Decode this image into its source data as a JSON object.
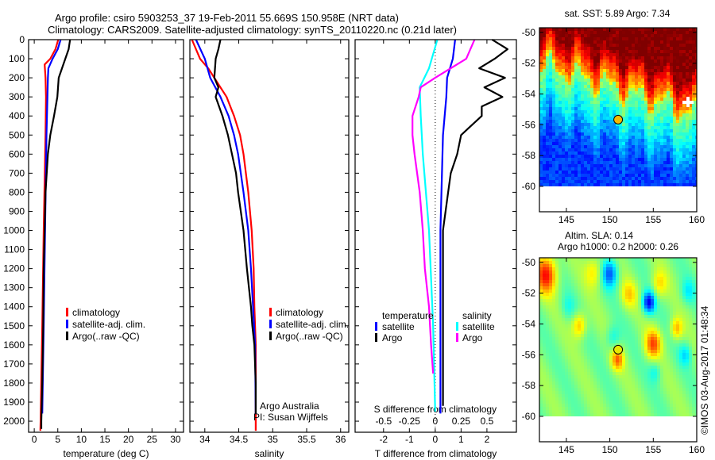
{
  "title": {
    "line1": "Argo profile: csiro 5903253_37 19-Feb-2011 55.669S 150.958E (NRT data)",
    "line2": "Climatology: CARS2009. Satellite-adjusted climatology: synTS_20110220.nc (0.21d later)"
  },
  "colors": {
    "climatology": "#ff0000",
    "satellite": "#0000ff",
    "argo": "#000000",
    "sal_satellite": "#00ffff",
    "sal_argo": "#ff00ff"
  },
  "credits": {
    "line1": "Argo Australia",
    "line2": "PI: Susan Wijffels"
  },
  "timestamp": "©IMOS 03-Aug-2017 01:48:34",
  "chart_data": [
    {
      "type": "line",
      "id": "temperature",
      "xlabel": "temperature (deg C)",
      "ylabel": "",
      "xlim": [
        -1.2,
        31.7
      ],
      "ylim": [
        2058,
        0
      ],
      "xticks": [
        0,
        5,
        10,
        15,
        20,
        25,
        30
      ],
      "yticks": [
        0,
        100,
        200,
        300,
        400,
        500,
        600,
        700,
        800,
        900,
        1000,
        1100,
        1200,
        1300,
        1400,
        1500,
        1600,
        1700,
        1800,
        1900,
        2000
      ],
      "legend": [
        "climatology",
        "satellite-adj. clim.",
        "Argo(..raw -QC)"
      ],
      "series": [
        {
          "name": "climatology",
          "color": "#ff0000",
          "depth": [
            0,
            50,
            100,
            130,
            200,
            300,
            500,
            1000,
            1500,
            2000,
            2050
          ],
          "values": [
            5.1,
            4.5,
            3.4,
            2.2,
            2.4,
            2.5,
            2.4,
            2.0,
            1.7,
            1.35,
            1.3
          ]
        },
        {
          "name": "satellite-adj. clim.",
          "color": "#0000ff",
          "depth": [
            0,
            50,
            100,
            150,
            200,
            300,
            500,
            1000,
            1500,
            1960
          ],
          "values": [
            5.6,
            5.0,
            3.9,
            3.0,
            2.9,
            2.8,
            2.6,
            2.3,
            2.0,
            1.7
          ]
        },
        {
          "name": "Argo(..raw -QC)",
          "color": "#000000",
          "depth": [
            0,
            50,
            100,
            200,
            300,
            400,
            500,
            600,
            800,
            1000,
            1200,
            1500,
            1800,
            2000,
            2040
          ],
          "values": [
            7.6,
            7.3,
            6.6,
            5.2,
            4.9,
            4.2,
            3.4,
            2.9,
            2.4,
            2.2,
            2.0,
            1.9,
            1.7,
            1.5,
            1.5
          ]
        }
      ]
    },
    {
      "type": "line",
      "id": "salinity",
      "xlabel": "salinity",
      "xlim": [
        33.78,
        36.12
      ],
      "ylim": [
        2058,
        0
      ],
      "xticks": [
        34,
        34.5,
        35,
        35.5,
        36
      ],
      "legend": [
        "climatology",
        "satellite-adj. clim.",
        "Argo(..raw -QC)"
      ],
      "series": [
        {
          "name": "climatology",
          "color": "#ff0000",
          "depth": [
            0,
            100,
            150,
            200,
            300,
            400,
            500,
            600,
            800,
            1000,
            1200,
            1400,
            1600,
            2000,
            2050
          ],
          "values": [
            33.81,
            33.93,
            34.05,
            34.14,
            34.32,
            34.43,
            34.52,
            34.57,
            34.64,
            34.69,
            34.72,
            34.73,
            34.75,
            34.75,
            34.75
          ]
        },
        {
          "name": "satellite-adj. clim.",
          "color": "#0000ff",
          "depth": [
            0,
            100,
            200,
            300,
            400,
            500,
            600,
            800,
            1000,
            1200,
            1400,
            1600,
            1960
          ],
          "values": [
            33.87,
            34.0,
            34.08,
            34.23,
            34.35,
            34.43,
            34.49,
            34.57,
            34.64,
            34.68,
            34.71,
            34.74,
            34.75
          ]
        },
        {
          "name": "Argo(..raw -QC)",
          "color": "#000000",
          "depth": [
            0,
            50,
            100,
            200,
            250,
            300,
            400,
            500,
            600,
            700,
            800,
            900,
            1000,
            1200,
            1400,
            1500,
            1600,
            1800,
            1960
          ],
          "values": [
            34.23,
            34.2,
            34.16,
            34.14,
            34.2,
            34.16,
            34.26,
            34.34,
            34.4,
            34.46,
            34.49,
            34.53,
            34.57,
            34.62,
            34.68,
            34.7,
            34.73,
            34.75,
            34.75
          ]
        }
      ]
    },
    {
      "type": "line",
      "id": "difference",
      "xlabel": "T difference from climatology",
      "x2label": "S difference from climatology",
      "xlim": [
        -3.1,
        3.14
      ],
      "ylim": [
        2058,
        0
      ],
      "xticks": [
        -2,
        -1,
        0,
        1,
        2
      ],
      "x2ticks": [
        -0.5,
        -0.25,
        0,
        0.25,
        0.5
      ],
      "legend": {
        "temperature_title": "temperature",
        "salinity_title": "salinity",
        "temperature": [
          "satellite",
          "Argo"
        ],
        "salinity": [
          "satellite",
          "Argo"
        ]
      },
      "series": [
        {
          "name": "temperature satellite",
          "axis": "T",
          "color": "#0000ff",
          "depth": [
            0,
            100,
            200,
            300,
            500,
            1000,
            1500,
            1960
          ],
          "values": [
            0.77,
            0.68,
            0.46,
            0.43,
            0.3,
            0.2,
            0.2,
            0.2
          ]
        },
        {
          "name": "temperature Argo",
          "axis": "T",
          "color": "#000000",
          "depth": [
            0,
            50,
            100,
            150,
            200,
            250,
            300,
            350,
            400,
            450,
            500,
            600,
            700,
            800,
            1000,
            1500,
            1920
          ],
          "values": [
            2.2,
            2.8,
            2.3,
            1.7,
            2.7,
            1.9,
            2.6,
            1.8,
            1.8,
            1.4,
            1.0,
            0.85,
            0.6,
            0.5,
            0.3,
            0.3,
            0.3
          ]
        },
        {
          "name": "salinity satellite",
          "axis": "S",
          "color": "#00ffff",
          "depth": [
            0,
            150,
            250,
            400,
            600,
            1000,
            1500,
            1950
          ],
          "values": [
            0.02,
            -0.06,
            -0.15,
            -0.14,
            -0.12,
            -0.06,
            -0.02,
            0.0
          ]
        },
        {
          "name": "salinity Argo",
          "axis": "S",
          "color": "#ff00ff",
          "depth": [
            0,
            100,
            150,
            200,
            250,
            300,
            400,
            500,
            600,
            800,
            1000,
            1200,
            1400,
            1600,
            1750
          ],
          "values": [
            0.38,
            0.3,
            0.15,
            0.0,
            -0.14,
            -0.16,
            -0.22,
            -0.22,
            -0.2,
            -0.15,
            -0.12,
            -0.1,
            -0.06,
            -0.04,
            -0.02
          ]
        }
      ]
    },
    {
      "type": "heatmap",
      "id": "sst_map",
      "title": "sat. SST: 5.89 Argo: 7.34",
      "xlim": [
        141.9,
        160
      ],
      "ylim": [
        -61.65,
        -49.7
      ],
      "xticks": [
        145,
        150,
        155,
        160
      ],
      "yticks": [
        -50,
        -52,
        -54,
        -56,
        -58,
        -60
      ],
      "data_south_limit": -60,
      "argo_position": [
        150.958,
        -55.669
      ]
    },
    {
      "type": "heatmap",
      "id": "sla_map",
      "title": "Altim. SLA: 0.14",
      "subtitle": "Argo h1000: 0.2 h2000: 0.26",
      "xlim": [
        141.9,
        160
      ],
      "ylim": [
        -61.65,
        -49.7
      ],
      "xticks": [
        145,
        150,
        155,
        160
      ],
      "yticks": [
        -50,
        -52,
        -54,
        -56,
        -58,
        -60
      ],
      "data_south_limit": -60,
      "argo_position": [
        150.958,
        -55.669
      ]
    }
  ]
}
